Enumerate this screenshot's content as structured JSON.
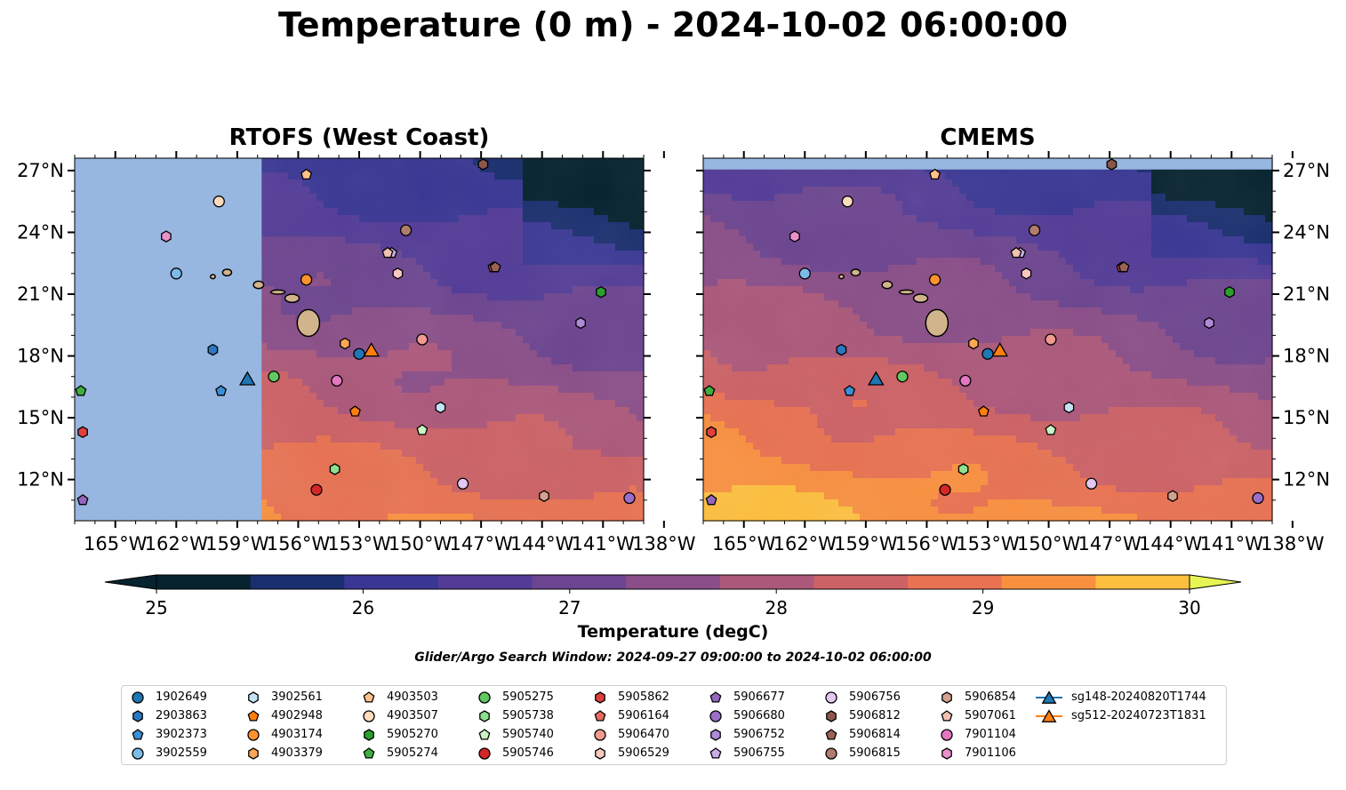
{
  "title": "Temperature (0 m) - 2024-10-02 06:00:00",
  "panels": [
    {
      "title": "RTOFS (West Coast)"
    },
    {
      "title": "CMEMS"
    }
  ],
  "axes": {
    "lon_ticks": [
      "165°W",
      "162°W",
      "159°W",
      "156°W",
      "153°W",
      "150°W",
      "147°W",
      "144°W",
      "141°W",
      "138°W"
    ],
    "lat_ticks": [
      "12°N",
      "15°N",
      "18°N",
      "21°N",
      "24°N",
      "27°N"
    ],
    "lon_range": [
      -167,
      -139
    ],
    "lat_range": [
      10,
      27.6
    ]
  },
  "colorbar": {
    "label": "Temperature (degC)",
    "ticks": [
      "25",
      "26",
      "27",
      "28",
      "29",
      "30"
    ],
    "range": [
      25,
      30
    ],
    "step": 0.5,
    "extend": "both",
    "colors": [
      "#06232f",
      "#1a2f6f",
      "#3a3794",
      "#533c97",
      "#6c4590",
      "#8a4e88",
      "#ac587a",
      "#cc6266",
      "#e87252",
      "#f99040",
      "#fdbf3e"
    ],
    "under_color": "#06232f",
    "over_color": "#e7f553"
  },
  "search_window": "Glider/Argo Search Window: 2024-09-27 09:00:00 to 2024-10-02 06:00:00",
  "legend": [
    {
      "label": "1902649",
      "marker": "circle",
      "color": "#1f77b4",
      "lon": -153.0,
      "lat": 18.1
    },
    {
      "label": "2903863",
      "marker": "hexagon",
      "color": "#2b78c2",
      "lon": -160.2,
      "lat": 18.3
    },
    {
      "label": "3902373",
      "marker": "pentagon",
      "color": "#3b8fd6",
      "lon": -159.8,
      "lat": 16.3
    },
    {
      "label": "3902559",
      "marker": "circle",
      "color": "#7bbbe8",
      "lon": -162.0,
      "lat": 22.0
    },
    {
      "label": "3902561",
      "marker": "hexagon",
      "color": "#c5e2f5",
      "lon": -149.0,
      "lat": 15.5
    },
    {
      "label": "4902948",
      "marker": "pentagon",
      "color": "#ff7f0e",
      "lon": -153.2,
      "lat": 15.3
    },
    {
      "label": "4903174",
      "marker": "circle",
      "color": "#ff922e",
      "lon": -155.6,
      "lat": 21.7
    },
    {
      "label": "4903379",
      "marker": "hexagon",
      "color": "#ffa754",
      "lon": -153.7,
      "lat": 18.6
    },
    {
      "label": "4903503",
      "marker": "pentagon",
      "color": "#ffc18a",
      "lon": -155.6,
      "lat": 26.8
    },
    {
      "label": "4903507",
      "marker": "circle",
      "color": "#ffdcbc",
      "lon": -159.9,
      "lat": 25.5
    },
    {
      "label": "5905270",
      "marker": "hexagon",
      "color": "#2ca02c",
      "lon": -141.1,
      "lat": 21.1
    },
    {
      "label": "5905274",
      "marker": "pentagon",
      "color": "#3fb03f",
      "lon": -166.7,
      "lat": 16.3
    },
    {
      "label": "5905275",
      "marker": "circle",
      "color": "#62c862",
      "lon": -157.2,
      "lat": 17.0
    },
    {
      "label": "5905738",
      "marker": "hexagon",
      "color": "#8ee08e",
      "lon": -154.2,
      "lat": 12.5
    },
    {
      "label": "5905740",
      "marker": "pentagon",
      "color": "#c8f5c2",
      "lon": -149.9,
      "lat": 14.4
    },
    {
      "label": "5905746",
      "marker": "circle",
      "color": "#d62728",
      "lon": -155.1,
      "lat": 11.5
    },
    {
      "label": "5905862",
      "marker": "hexagon",
      "color": "#e0403c",
      "lon": -166.6,
      "lat": 14.3
    },
    {
      "label": "5906164",
      "marker": "pentagon",
      "color": "#e86a60",
      "lon": -146.4,
      "lat": 22.3
    },
    {
      "label": "5906470",
      "marker": "circle",
      "color": "#f09a90",
      "lon": -149.9,
      "lat": 18.8
    },
    {
      "label": "5906529",
      "marker": "hexagon",
      "color": "#f8c8c0",
      "lon": -151.1,
      "lat": 22.0
    },
    {
      "label": "5906677",
      "marker": "pentagon",
      "color": "#9467bd",
      "lon": -166.6,
      "lat": 11.0
    },
    {
      "label": "5906680",
      "marker": "circle",
      "color": "#9b6fc8",
      "lon": -139.7,
      "lat": 11.1
    },
    {
      "label": "5906752",
      "marker": "hexagon",
      "color": "#b08ad8",
      "lon": -142.1,
      "lat": 19.6
    },
    {
      "label": "5906755",
      "marker": "pentagon",
      "color": "#c9aee6",
      "lon": -151.4,
      "lat": 23.0
    },
    {
      "label": "5906756",
      "marker": "circle",
      "color": "#e2c8f2",
      "lon": -147.9,
      "lat": 11.8
    },
    {
      "label": "5906812",
      "marker": "hexagon",
      "color": "#8c564b",
      "lon": -146.9,
      "lat": 27.3
    },
    {
      "label": "5906814",
      "marker": "pentagon",
      "color": "#9a6256",
      "lon": -146.3,
      "lat": 22.3
    },
    {
      "label": "5906815",
      "marker": "circle",
      "color": "#b07c6e",
      "lon": -150.7,
      "lat": 24.1
    },
    {
      "label": "5906854",
      "marker": "hexagon",
      "color": "#d4a18e",
      "lon": -143.9,
      "lat": 11.2
    },
    {
      "label": "5907061",
      "marker": "pentagon",
      "color": "#f2c2b0",
      "lon": -151.6,
      "lat": 23.0
    },
    {
      "label": "7901104",
      "marker": "circle",
      "color": "#e377c2",
      "lon": -154.1,
      "lat": 16.8
    },
    {
      "label": "7901106",
      "marker": "hexagon",
      "color": "#e991cc",
      "lon": -162.5,
      "lat": 23.8
    },
    {
      "label": "sg148-20240820T1744",
      "marker": "triangle",
      "color": "#1f77b4",
      "line": true,
      "lon": -158.5,
      "lat": 16.9
    },
    {
      "label": "sg512-20240723T1831",
      "marker": "triangle",
      "color": "#ff7f0e",
      "line": true,
      "lon": -152.4,
      "lat": 18.3
    }
  ]
}
